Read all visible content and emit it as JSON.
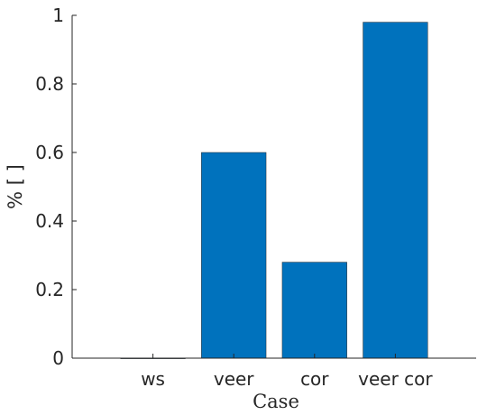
{
  "chart_data": {
    "type": "bar",
    "categories": [
      "ws",
      "veer",
      "cor",
      "veer cor"
    ],
    "values": [
      0,
      0.6,
      0.28,
      0.98
    ],
    "xlabel": "Case",
    "ylabel": "% [ ]",
    "ylim": [
      0,
      1
    ],
    "yticks": [
      "0",
      "0.2",
      "0.4",
      "0.6",
      "0.8",
      "1"
    ],
    "grid": false,
    "legend": "none",
    "bar_color": "#0072BD"
  }
}
